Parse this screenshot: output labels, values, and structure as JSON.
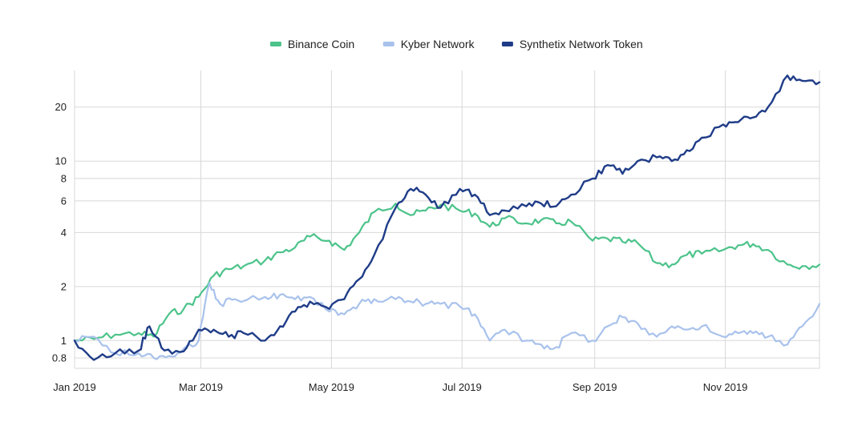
{
  "chart_data": {
    "type": "line",
    "title": "",
    "xlabel": "",
    "ylabel": "",
    "yscale": "log",
    "ylim": [
      0.7,
      32
    ],
    "xlim": [
      "2019-01-01",
      "2019-12-15"
    ],
    "grid": true,
    "legend_position": "top-center",
    "x_ticks": [
      {
        "date": "2019-01-01",
        "label": "Jan 2019"
      },
      {
        "date": "2019-03-01",
        "label": "Mar 2019"
      },
      {
        "date": "2019-05-01",
        "label": "May 2019"
      },
      {
        "date": "2019-07-01",
        "label": "Jul 2019"
      },
      {
        "date": "2019-09-01",
        "label": "Sep 2019"
      },
      {
        "date": "2019-11-01",
        "label": "Nov 2019"
      }
    ],
    "y_ticks": [
      {
        "value": 0.8,
        "label": "0.8"
      },
      {
        "value": 1,
        "label": "1"
      },
      {
        "value": 2,
        "label": "2"
      },
      {
        "value": 4,
        "label": "4"
      },
      {
        "value": 6,
        "label": "6"
      },
      {
        "value": 8,
        "label": "8"
      },
      {
        "value": 10,
        "label": "10"
      },
      {
        "value": 20,
        "label": "20"
      }
    ],
    "series": [
      {
        "name": "Binance Coin",
        "color": "#4cc38a",
        "points": [
          [
            "2019-01-01",
            1.0
          ],
          [
            "2019-01-10",
            1.02
          ],
          [
            "2019-01-20",
            1.08
          ],
          [
            "2019-01-31",
            1.1
          ],
          [
            "2019-02-07",
            1.05
          ],
          [
            "2019-02-14",
            1.4
          ],
          [
            "2019-02-21",
            1.5
          ],
          [
            "2019-02-28",
            1.75
          ],
          [
            "2019-03-07",
            2.3
          ],
          [
            "2019-03-14",
            2.5
          ],
          [
            "2019-03-21",
            2.6
          ],
          [
            "2019-03-31",
            2.8
          ],
          [
            "2019-04-07",
            3.1
          ],
          [
            "2019-04-14",
            3.3
          ],
          [
            "2019-04-21",
            3.8
          ],
          [
            "2019-04-30",
            3.6
          ],
          [
            "2019-05-07",
            3.2
          ],
          [
            "2019-05-14",
            4.0
          ],
          [
            "2019-05-21",
            5.2
          ],
          [
            "2019-05-31",
            5.8
          ],
          [
            "2019-06-07",
            5.0
          ],
          [
            "2019-06-14",
            5.3
          ],
          [
            "2019-06-21",
            5.7
          ],
          [
            "2019-06-30",
            5.3
          ],
          [
            "2019-07-07",
            5.1
          ],
          [
            "2019-07-14",
            4.3
          ],
          [
            "2019-07-21",
            4.8
          ],
          [
            "2019-07-31",
            4.5
          ],
          [
            "2019-08-07",
            4.7
          ],
          [
            "2019-08-14",
            4.5
          ],
          [
            "2019-08-21",
            4.6
          ],
          [
            "2019-08-31",
            3.6
          ],
          [
            "2019-09-07",
            3.7
          ],
          [
            "2019-09-14",
            3.55
          ],
          [
            "2019-09-21",
            3.5
          ],
          [
            "2019-09-30",
            2.7
          ],
          [
            "2019-10-07",
            2.65
          ],
          [
            "2019-10-14",
            3.0
          ],
          [
            "2019-10-21",
            3.05
          ],
          [
            "2019-10-31",
            3.2
          ],
          [
            "2019-11-07",
            3.4
          ],
          [
            "2019-11-14",
            3.45
          ],
          [
            "2019-11-21",
            3.2
          ],
          [
            "2019-11-30",
            2.65
          ],
          [
            "2019-12-07",
            2.6
          ],
          [
            "2019-12-15",
            2.65
          ]
        ]
      },
      {
        "name": "Kyber Network",
        "color": "#a9c2ec",
        "points": [
          [
            "2019-01-01",
            1.0
          ],
          [
            "2019-01-10",
            1.05
          ],
          [
            "2019-01-20",
            0.85
          ],
          [
            "2019-01-31",
            0.85
          ],
          [
            "2019-02-07",
            0.8
          ],
          [
            "2019-02-14",
            0.82
          ],
          [
            "2019-02-21",
            0.9
          ],
          [
            "2019-02-28",
            1.0
          ],
          [
            "2019-03-05",
            2.1
          ],
          [
            "2019-03-10",
            1.6
          ],
          [
            "2019-03-17",
            1.7
          ],
          [
            "2019-03-31",
            1.75
          ],
          [
            "2019-04-07",
            1.8
          ],
          [
            "2019-04-14",
            1.7
          ],
          [
            "2019-04-21",
            1.75
          ],
          [
            "2019-04-30",
            1.45
          ],
          [
            "2019-05-07",
            1.4
          ],
          [
            "2019-05-14",
            1.6
          ],
          [
            "2019-05-21",
            1.7
          ],
          [
            "2019-05-31",
            1.7
          ],
          [
            "2019-06-07",
            1.65
          ],
          [
            "2019-06-14",
            1.6
          ],
          [
            "2019-06-21",
            1.6
          ],
          [
            "2019-06-30",
            1.55
          ],
          [
            "2019-07-07",
            1.4
          ],
          [
            "2019-07-14",
            1.0
          ],
          [
            "2019-07-21",
            1.15
          ],
          [
            "2019-07-31",
            1.0
          ],
          [
            "2019-08-07",
            0.95
          ],
          [
            "2019-08-14",
            0.92
          ],
          [
            "2019-08-21",
            1.1
          ],
          [
            "2019-08-31",
            1.0
          ],
          [
            "2019-09-07",
            1.2
          ],
          [
            "2019-09-14",
            1.35
          ],
          [
            "2019-09-21",
            1.25
          ],
          [
            "2019-09-30",
            1.05
          ],
          [
            "2019-10-07",
            1.2
          ],
          [
            "2019-10-14",
            1.15
          ],
          [
            "2019-10-21",
            1.2
          ],
          [
            "2019-10-31",
            1.05
          ],
          [
            "2019-11-07",
            1.1
          ],
          [
            "2019-11-14",
            1.1
          ],
          [
            "2019-11-21",
            1.05
          ],
          [
            "2019-11-30",
            0.95
          ],
          [
            "2019-12-07",
            1.2
          ],
          [
            "2019-12-15",
            1.6
          ]
        ]
      },
      {
        "name": "Synthetix Network Token",
        "color": "#1f3c88",
        "points": [
          [
            "2019-01-01",
            1.0
          ],
          [
            "2019-01-10",
            0.78
          ],
          [
            "2019-01-20",
            0.85
          ],
          [
            "2019-01-31",
            0.88
          ],
          [
            "2019-02-05",
            1.2
          ],
          [
            "2019-02-12",
            0.88
          ],
          [
            "2019-02-21",
            0.87
          ],
          [
            "2019-02-28",
            1.15
          ],
          [
            "2019-03-07",
            1.15
          ],
          [
            "2019-03-14",
            1.05
          ],
          [
            "2019-03-21",
            1.1
          ],
          [
            "2019-03-31",
            1.0
          ],
          [
            "2019-04-07",
            1.2
          ],
          [
            "2019-04-14",
            1.45
          ],
          [
            "2019-04-21",
            1.65
          ],
          [
            "2019-04-30",
            1.5
          ],
          [
            "2019-05-07",
            1.7
          ],
          [
            "2019-05-14",
            2.2
          ],
          [
            "2019-05-21",
            3.0
          ],
          [
            "2019-05-31",
            5.5
          ],
          [
            "2019-06-07",
            7.0
          ],
          [
            "2019-06-14",
            6.5
          ],
          [
            "2019-06-21",
            5.5
          ],
          [
            "2019-06-30",
            7.0
          ],
          [
            "2019-07-07",
            6.5
          ],
          [
            "2019-07-14",
            5.0
          ],
          [
            "2019-07-21",
            5.3
          ],
          [
            "2019-07-31",
            5.6
          ],
          [
            "2019-08-07",
            5.8
          ],
          [
            "2019-08-14",
            5.6
          ],
          [
            "2019-08-21",
            6.5
          ],
          [
            "2019-08-31",
            8.0
          ],
          [
            "2019-09-07",
            9.5
          ],
          [
            "2019-09-14",
            8.5
          ],
          [
            "2019-09-21",
            10.0
          ],
          [
            "2019-09-30",
            10.5
          ],
          [
            "2019-10-07",
            10.0
          ],
          [
            "2019-10-14",
            11.5
          ],
          [
            "2019-10-21",
            13.5
          ],
          [
            "2019-10-31",
            16.0
          ],
          [
            "2019-11-07",
            16.5
          ],
          [
            "2019-11-14",
            17.5
          ],
          [
            "2019-11-21",
            20.0
          ],
          [
            "2019-11-30",
            30.0
          ],
          [
            "2019-12-07",
            28.0
          ],
          [
            "2019-12-15",
            27.5
          ]
        ]
      }
    ]
  }
}
